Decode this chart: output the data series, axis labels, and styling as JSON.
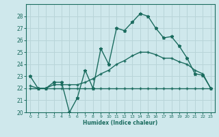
{
  "xlabel": "Humidex (Indice chaleur)",
  "xlim": [
    -0.5,
    23.5
  ],
  "ylim": [
    20,
    29
  ],
  "yticks": [
    20,
    21,
    22,
    23,
    24,
    25,
    26,
    27,
    28
  ],
  "xticks": [
    0,
    1,
    2,
    3,
    4,
    5,
    6,
    7,
    8,
    9,
    10,
    11,
    12,
    13,
    14,
    15,
    16,
    17,
    18,
    19,
    20,
    21,
    22,
    23
  ],
  "bg_color": "#cfe8ec",
  "grid_color": "#b8d4d8",
  "line_color": "#1a6b5e",
  "line1_x": [
    0,
    1,
    2,
    3,
    4,
    5,
    6,
    7,
    8,
    9,
    10,
    11,
    12,
    13,
    14,
    15,
    16,
    17,
    18,
    19,
    20,
    21,
    22,
    23
  ],
  "line1_y": [
    23.0,
    22.0,
    22.0,
    22.5,
    22.5,
    20.0,
    21.2,
    23.5,
    22.0,
    25.3,
    24.0,
    27.0,
    26.8,
    27.5,
    28.2,
    28.0,
    27.0,
    26.2,
    26.3,
    25.5,
    24.5,
    23.2,
    23.1,
    22.0
  ],
  "line2_x": [
    0,
    1,
    2,
    3,
    4,
    5,
    6,
    7,
    8,
    9,
    10,
    11,
    12,
    13,
    14,
    15,
    16,
    17,
    18,
    19,
    20,
    21,
    22,
    23
  ],
  "line2_y": [
    22.2,
    22.0,
    22.0,
    22.3,
    22.3,
    22.3,
    22.3,
    22.5,
    22.8,
    23.2,
    23.5,
    24.0,
    24.3,
    24.7,
    25.0,
    25.0,
    24.8,
    24.5,
    24.5,
    24.2,
    24.0,
    23.5,
    23.2,
    22.0
  ],
  "line3_x": [
    0,
    1,
    2,
    3,
    4,
    5,
    6,
    7,
    8,
    9,
    10,
    11,
    12,
    13,
    14,
    15,
    16,
    17,
    18,
    19,
    20,
    21,
    22,
    23
  ],
  "line3_y": [
    22.0,
    22.0,
    22.0,
    22.0,
    22.0,
    22.0,
    22.0,
    22.0,
    22.0,
    22.0,
    22.0,
    22.0,
    22.0,
    22.0,
    22.0,
    22.0,
    22.0,
    22.0,
    22.0,
    22.0,
    22.0,
    22.0,
    22.0,
    22.0
  ]
}
